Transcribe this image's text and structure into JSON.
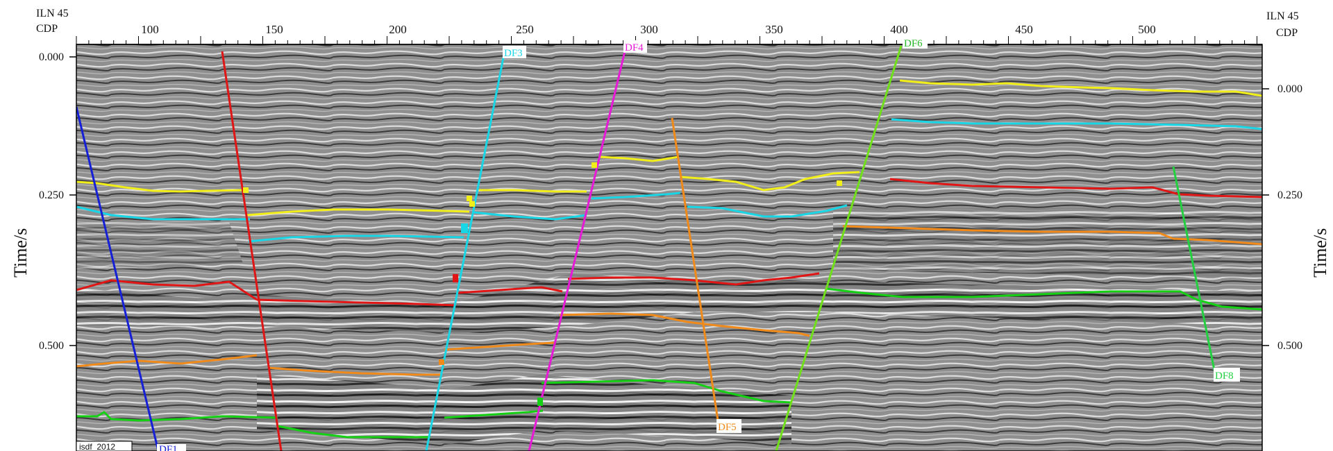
{
  "header": {
    "left_line_label": "ILN 45",
    "left_cdp_label": "CDP",
    "right_line_label": "ILN 45",
    "right_cdp_label": "CDP"
  },
  "axes": {
    "y_label_left": "Time/s",
    "y_label_right": "Time/s",
    "cdp_ticks": [
      "100",
      "150",
      "200",
      "250",
      "300",
      "350",
      "400",
      "450",
      "500"
    ],
    "left_time_ticks": [
      "0.000",
      "0.250",
      "0.500"
    ],
    "right_time_ticks": [
      "0.000",
      "0.250",
      "0.500"
    ]
  },
  "stamp": "isdf_2012",
  "colors": {
    "background_gray": "#8c8c8c",
    "yellow_horizon": "#f2ee1a",
    "cyan_horizon": "#19d6e6",
    "red_horizon": "#e01515",
    "orange_horizon": "#ef8a1b",
    "green_horizon": "#15d015",
    "df1": "#1520d6",
    "df2": "#e01515",
    "df3": "#19d6e6",
    "df4": "#e619d6",
    "df5": "#ef8a1b",
    "df6": "#6fe01a",
    "df7": "#22d040"
  },
  "faults": [
    {
      "id": "DF1",
      "label": "DF1",
      "color": "#1520d6"
    },
    {
      "id": "DF2",
      "label": "",
      "color": "#e01515"
    },
    {
      "id": "DF3",
      "label": "DF3",
      "color": "#19d6e6"
    },
    {
      "id": "DF4",
      "label": "DF4",
      "color": "#e619d6"
    },
    {
      "id": "DF5",
      "label": "DF5",
      "color": "#ef8a1b"
    },
    {
      "id": "DF6",
      "label": "DF6",
      "color": "#6fe01a"
    },
    {
      "id": "DF8",
      "label": "DF8",
      "color": "#22d040"
    }
  ],
  "horizons": [
    {
      "name": "yellow",
      "color": "#f2ee1a"
    },
    {
      "name": "cyan",
      "color": "#19d6e6"
    },
    {
      "name": "red",
      "color": "#e01515"
    },
    {
      "name": "orange",
      "color": "#ef8a1b"
    },
    {
      "name": "green",
      "color": "#15d015"
    }
  ]
}
